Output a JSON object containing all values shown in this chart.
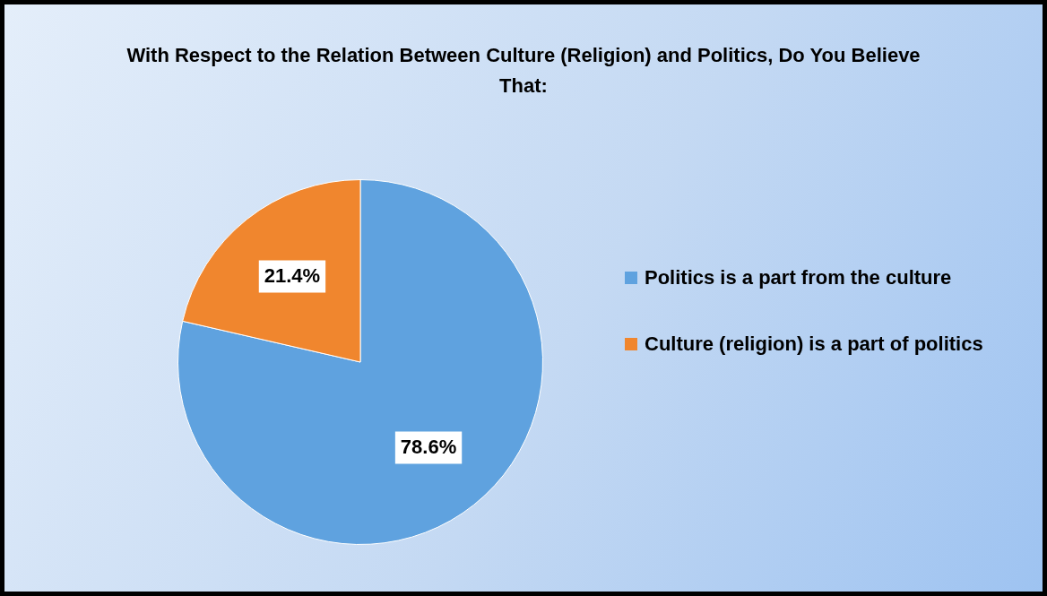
{
  "chart_data": {
    "type": "pie",
    "title": "With Respect to the Relation Between Culture (Religion) and Politics, Do You Believe That:",
    "categories": [
      "Politics is a part from the culture",
      "Culture (religion) is a part of politics"
    ],
    "values": [
      78.6,
      21.4
    ],
    "colors": [
      "#5fa2df",
      "#f0862e"
    ],
    "value_labels": [
      "78.6%",
      "21.4%"
    ],
    "legend": "right"
  }
}
